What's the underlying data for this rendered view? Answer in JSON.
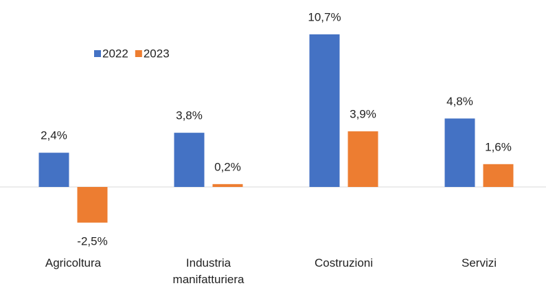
{
  "chart_data": {
    "type": "bar",
    "categories": [
      "Agricoltura",
      "Industria manifatturiera",
      "Costruzioni",
      "Servizi"
    ],
    "series": [
      {
        "name": "2022",
        "color": "#4472c4",
        "values": [
          2.4,
          3.8,
          10.7,
          4.8
        ],
        "value_labels": [
          "2,4%",
          "3,8%",
          "10,7%",
          "4,8%"
        ]
      },
      {
        "name": "2023",
        "color": "#ed7d31",
        "values": [
          -2.5,
          0.2,
          3.9,
          1.6
        ],
        "value_labels": [
          "-2,5%",
          "0,2%",
          "3,9%",
          "1,6%"
        ]
      }
    ],
    "ylim": [
      -4,
      12
    ],
    "legend": "top-left"
  }
}
